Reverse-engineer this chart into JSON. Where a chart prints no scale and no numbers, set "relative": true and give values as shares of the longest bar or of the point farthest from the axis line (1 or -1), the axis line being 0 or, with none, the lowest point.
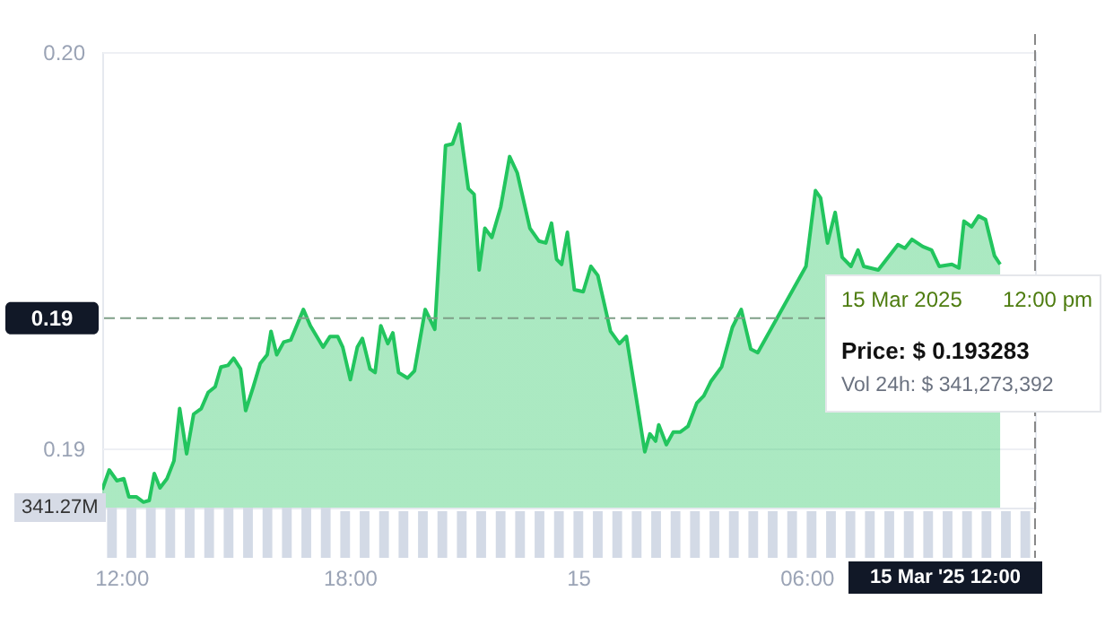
{
  "chart_data": [
    {
      "type": "area",
      "color": "#22c55e",
      "xlim": [
        "2025-03-14T11:30",
        "2025-03-15T12:00"
      ],
      "xticks": [
        {
          "value": "2025-03-14T12:00",
          "label": "12:00"
        },
        {
          "value": "2025-03-14T18:00",
          "label": "18:00"
        },
        {
          "value": "2025-03-15T00:00",
          "label": "15"
        },
        {
          "value": "2025-03-15T06:00",
          "label": "06:00"
        }
      ],
      "ylim": [
        0.1885,
        0.2
      ],
      "yticks": [
        {
          "value": 0.19,
          "label": "0.19"
        },
        {
          "value": 0.2,
          "label": "0.20"
        }
      ],
      "grid": "y",
      "x": [
        "2025-03-14T11:30",
        "2025-03-14T11:41",
        "2025-03-14T11:53",
        "2025-03-14T12:04",
        "2025-03-14T12:12",
        "2025-03-14T12:24",
        "2025-03-14T12:35",
        "2025-03-14T12:44",
        "2025-03-14T12:52",
        "2025-03-14T13:01",
        "2025-03-14T13:12",
        "2025-03-14T13:23",
        "2025-03-14T13:32",
        "2025-03-14T13:43",
        "2025-03-14T13:54",
        "2025-03-14T14:06",
        "2025-03-14T14:17",
        "2025-03-14T14:28",
        "2025-03-14T14:37",
        "2025-03-14T14:48",
        "2025-03-14T14:57",
        "2025-03-14T15:08",
        "2025-03-14T15:16",
        "2025-03-14T15:28",
        "2025-03-14T15:39",
        "2025-03-14T15:50",
        "2025-03-14T15:56",
        "2025-03-14T16:05",
        "2025-03-14T16:16",
        "2025-03-14T16:27",
        "2025-03-14T16:47",
        "2025-03-14T16:58",
        "2025-03-14T17:18",
        "2025-03-14T17:29",
        "2025-03-14T17:41",
        "2025-03-14T17:49",
        "2025-03-14T18:01",
        "2025-03-14T18:12",
        "2025-03-14T18:20",
        "2025-03-14T18:32",
        "2025-03-14T18:40",
        "2025-03-14T18:49",
        "2025-03-14T19:00",
        "2025-03-14T19:08",
        "2025-03-14T19:17",
        "2025-03-14T19:31",
        "2025-03-14T19:42",
        "2025-03-14T19:59",
        "2025-03-14T20:14",
        "2025-03-14T20:31",
        "2025-03-14T20:42",
        "2025-03-14T20:53",
        "2025-03-14T21:07",
        "2025-03-14T21:16",
        "2025-03-14T21:24",
        "2025-03-14T21:33",
        "2025-03-14T21:44",
        "2025-03-14T21:58",
        "2025-03-14T22:12",
        "2025-03-14T22:24",
        "2025-03-14T22:44",
        "2025-03-14T22:58",
        "2025-03-14T23:09",
        "2025-03-14T23:18",
        "2025-03-14T23:26",
        "2025-03-14T23:34",
        "2025-03-14T23:43",
        "2025-03-14T23:54",
        "2025-03-15T00:08",
        "2025-03-15T00:20",
        "2025-03-15T00:31",
        "2025-03-15T00:51",
        "2025-03-15T01:05",
        "2025-03-15T01:16",
        "2025-03-15T01:31",
        "2025-03-15T01:45",
        "2025-03-15T01:53",
        "2025-03-15T02:02",
        "2025-03-15T02:07",
        "2025-03-15T02:19",
        "2025-03-15T02:30",
        "2025-03-15T02:41",
        "2025-03-15T02:53",
        "2025-03-15T03:07",
        "2025-03-15T03:18",
        "2025-03-15T03:29",
        "2025-03-15T03:46",
        "2025-03-15T04:03",
        "2025-03-15T04:17",
        "2025-03-15T04:32",
        "2025-03-15T04:43",
        "2025-03-15T05:59",
        "2025-03-15T06:14",
        "2025-03-15T06:22",
        "2025-03-15T06:33",
        "2025-03-15T06:45",
        "2025-03-15T06:56",
        "2025-03-15T07:10",
        "2025-03-15T07:21",
        "2025-03-15T07:30",
        "2025-03-15T07:53",
        "2025-03-15T08:24",
        "2025-03-15T08:35",
        "2025-03-15T08:46",
        "2025-03-15T09:03",
        "2025-03-15T09:17",
        "2025-03-15T09:29",
        "2025-03-15T09:49",
        "2025-03-15T10:00",
        "2025-03-15T10:08",
        "2025-03-15T10:20",
        "2025-03-15T10:31",
        "2025-03-15T10:42",
        "2025-03-15T10:56",
        "2025-03-15T11:05"
      ],
      "values": [
        0.18895,
        0.18945,
        0.18918,
        0.18923,
        0.18877,
        0.18877,
        0.18864,
        0.18868,
        0.18936,
        0.189,
        0.18923,
        0.18968,
        0.191,
        0.18986,
        0.19086,
        0.191,
        0.19141,
        0.19155,
        0.19205,
        0.19209,
        0.19227,
        0.192,
        0.19095,
        0.19155,
        0.19214,
        0.19236,
        0.19295,
        0.19236,
        0.19268,
        0.19273,
        0.1935,
        0.19309,
        0.19255,
        0.19282,
        0.19282,
        0.19255,
        0.19173,
        0.19255,
        0.19277,
        0.192,
        0.19191,
        0.19309,
        0.19264,
        0.19291,
        0.19191,
        0.19177,
        0.19195,
        0.1935,
        0.193,
        0.19764,
        0.19768,
        0.19818,
        0.19655,
        0.19641,
        0.1945,
        0.19555,
        0.19532,
        0.19609,
        0.19736,
        0.19695,
        0.19555,
        0.19523,
        0.19518,
        0.19568,
        0.19477,
        0.19464,
        0.19545,
        0.194,
        0.19395,
        0.19459,
        0.19436,
        0.19295,
        0.19264,
        0.19282,
        0.19132,
        0.18991,
        0.19036,
        0.19018,
        0.19059,
        0.19009,
        0.19041,
        0.19041,
        0.19055,
        0.19114,
        0.19132,
        0.19168,
        0.19205,
        0.19305,
        0.1935,
        0.1925,
        0.19241,
        0.19459,
        0.1965,
        0.19632,
        0.19518,
        0.19595,
        0.19482,
        0.19459,
        0.195,
        0.19459,
        0.1945,
        0.19514,
        0.19505,
        0.19527,
        0.19509,
        0.195,
        0.19459,
        0.19464,
        0.19455,
        0.19573,
        0.19559,
        0.19586,
        0.19577,
        0.19486,
        0.19464
      ],
      "ref_lines": [
        {
          "axis": "y",
          "value": 0.193283,
          "label": "0.19",
          "color": "#7f9f88",
          "line_style": "dashed"
        },
        {
          "axis": "x",
          "value": "2025-03-15T12:00",
          "label": "15 Mar '25 12:00",
          "color": "#888888",
          "line_style": "dashed"
        }
      ],
      "annotations": [
        "15 Mar 2025",
        "12:00 pm",
        "Price: $ 0.193283",
        "Vol 24h: $ 341,273,392"
      ]
    },
    {
      "type": "bar",
      "relative": true,
      "color": "#d3dae6",
      "tick_labels": false,
      "categories": [
        null,
        null,
        null,
        null,
        null,
        null,
        null,
        null,
        null,
        null,
        null,
        null,
        null,
        null,
        null,
        null,
        null,
        null,
        null,
        null,
        null,
        null,
        null,
        null,
        null,
        null,
        null,
        null,
        null,
        null,
        null,
        null,
        null,
        null,
        null,
        null,
        null,
        null,
        null,
        null,
        null,
        null,
        null,
        null,
        null,
        null,
        null,
        null
      ],
      "values": [
        1,
        1,
        1,
        1,
        1,
        1,
        1,
        1,
        1,
        1,
        1,
        1,
        0.93,
        0.93,
        0.93,
        0.93,
        0.93,
        0.93,
        0.93,
        0.93,
        0.93,
        0.93,
        0.93,
        0.93,
        0.93,
        0.93,
        0.93,
        0.93,
        0.93,
        0.93,
        0.93,
        0.93,
        0.93,
        0.93,
        0.93,
        0.93,
        0.93,
        0.93,
        0.93,
        0.93,
        0.93,
        0.93,
        0.93,
        0.93,
        0.93,
        0.93,
        0.93,
        0.93
      ],
      "annotations": [
        "341.27M"
      ]
    }
  ]
}
